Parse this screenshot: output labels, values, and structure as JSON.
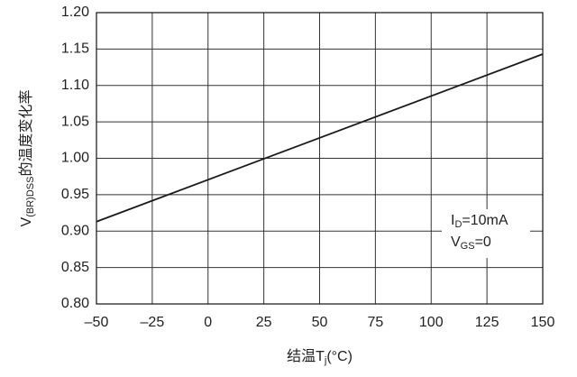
{
  "chart_data": {
    "type": "line",
    "xlabel": {
      "main": "结温T",
      "sub": "j",
      "rest": "(°C)"
    },
    "ylabel": {
      "main": "V",
      "sub": "(BR)DSS",
      "rest": "的温度变化率"
    },
    "annotations": [
      {
        "main": "I",
        "sub": "D",
        "rest": "=10mA"
      },
      {
        "main": "V",
        "sub": "GS",
        "rest": "=0"
      }
    ],
    "x": [
      -50,
      150
    ],
    "series": [
      {
        "color": "#1a1a1a",
        "values": [
          0.913,
          1.143
        ]
      }
    ],
    "xlim": [
      -50,
      150
    ],
    "xticks": [
      {
        "value": -50,
        "label": "–50"
      },
      {
        "value": -25,
        "label": "–25"
      },
      0,
      25,
      50,
      75,
      100,
      125,
      150
    ],
    "ylim": [
      0.8,
      1.2
    ],
    "yticks": [
      {
        "value": 0.8,
        "label": "0.80"
      },
      {
        "value": 0.85,
        "label": "0.85"
      },
      {
        "value": 0.9,
        "label": "0.90"
      },
      {
        "value": 0.95,
        "label": "0.95"
      },
      {
        "value": 1.0,
        "label": "1.00"
      },
      {
        "value": 1.05,
        "label": "1.05"
      },
      {
        "value": 1.1,
        "label": "1.10"
      },
      {
        "value": 1.15,
        "label": "1.15"
      },
      {
        "value": 1.2,
        "label": "1.20"
      }
    ],
    "grid": true
  }
}
